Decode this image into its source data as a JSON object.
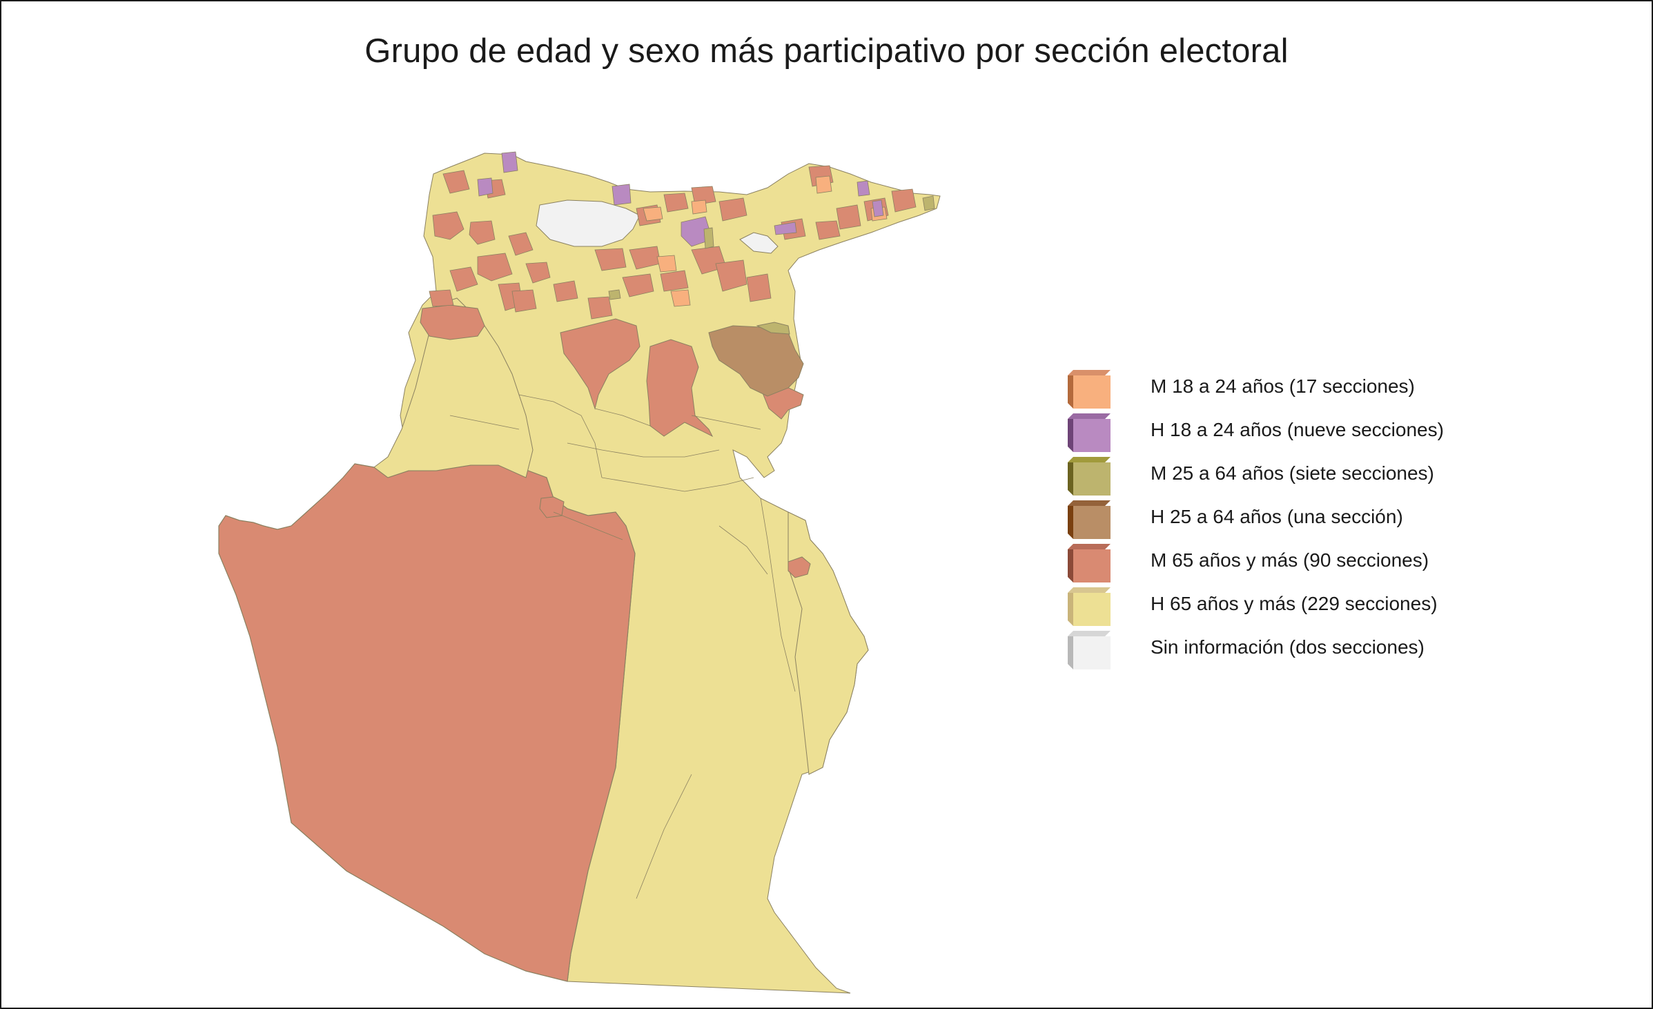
{
  "title": "Grupo de edad y sexo más participativo por sección electoral",
  "colors": {
    "m18": "#f8b07e",
    "h18": "#b98ac1",
    "m25": "#bdb46e",
    "h25": "#b98e66",
    "m65": "#d98a72",
    "h65": "#ede094",
    "none": "#f2f2f2",
    "border": "#8a8060"
  },
  "legend": [
    {
      "key": "m18",
      "label": "M 18 a 24 años (17 secciones)",
      "face": "#f8b07e",
      "side": "#b46a3c",
      "top": "#d9906a"
    },
    {
      "key": "h18",
      "label": "H 18 a 24 años (nueve secciones)",
      "face": "#b98ac1",
      "side": "#6e4477",
      "top": "#9a6aa3"
    },
    {
      "key": "m25",
      "label": "M 25 a 64 años (siete secciones)",
      "face": "#bdb46e",
      "side": "#6b6320",
      "top": "#a19a3c"
    },
    {
      "key": "h25",
      "label": "H 25 a 64 años (una sección)",
      "face": "#b98e66",
      "side": "#7a4010",
      "top": "#94623a"
    },
    {
      "key": "m65",
      "label": "M 65 años y más (90 secciones)",
      "face": "#d98a72",
      "side": "#8b4a38",
      "top": "#b86c58"
    },
    {
      "key": "h65",
      "label": "H 65 años y más (229 secciones)",
      "face": "#ede094",
      "side": "#c9b47a",
      "top": "#d8c690"
    },
    {
      "key": "none",
      "label": "Sin información (dos secciones)",
      "face": "#f2f2f2",
      "side": "#b8b8b8",
      "top": "#d6d6d6"
    }
  ]
}
